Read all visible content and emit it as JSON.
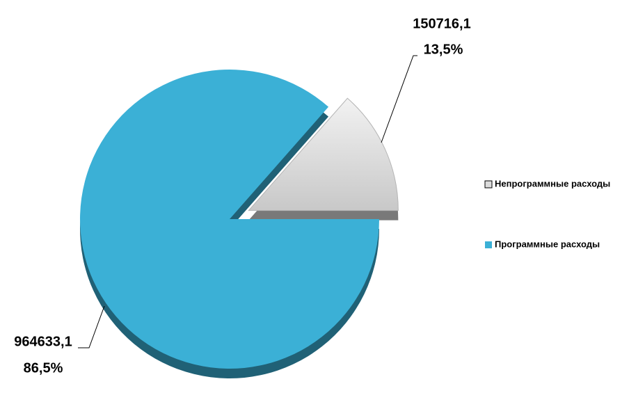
{
  "chart_data": {
    "type": "pie",
    "categories": [
      "Непрограммные расходы",
      "Программные расходы"
    ],
    "values": [
      150716.1,
      964633.1
    ],
    "value_labels": [
      "150716,1",
      "964633,1"
    ],
    "percents": [
      13.5,
      86.5
    ],
    "percent_labels": [
      "13,5%",
      "86,5%"
    ],
    "colors": [
      "#dcdcdc",
      "#3bb0d6"
    ],
    "legend": "right"
  }
}
